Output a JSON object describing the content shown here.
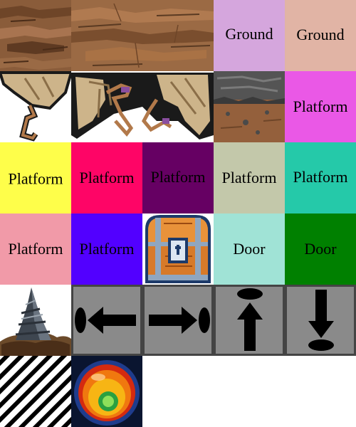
{
  "sheet": {
    "colors": {
      "ground_lilac": "#d5a6dd",
      "ground_peach": "#e1b4a5",
      "platform_magenta": "#ea58e6",
      "platform_yellow": "#fefe4a",
      "platform_pink": "#fe0566",
      "platform_plum": "#660063",
      "platform_sage": "#c3c8aa",
      "platform_teal": "#25c9a9",
      "platform_rose": "#f19aa8",
      "platform_violet": "#5200ff",
      "door_mint": "#a0e3d6",
      "door_green": "#008000",
      "arrow_tile_bg": "#8a8a8a"
    },
    "labels": {
      "r0c3": "Ground",
      "r0c4": "Ground",
      "r1c4": "Platform",
      "r2c0": "Platform",
      "r2c1": "Platform",
      "r2c2": "Platform",
      "r2c3": "Platform",
      "r2c4": "Platform",
      "r3c0": "Platform",
      "r3c1": "Platform",
      "r3c3": "Door",
      "r3c4": "Door"
    },
    "icons": {
      "rock_texture": "rock-texture-icon",
      "broken_pillar": "broken-pillar-icon",
      "stone_ledge": "stone-ledge-icon",
      "treasure_chest": "treasure-chest-icon",
      "arrow_left": "arrow-left-icon",
      "arrow_right": "arrow-right-icon",
      "arrow_up": "arrow-up-icon",
      "arrow_down": "arrow-down-icon",
      "spike_rock": "spike-rock-icon",
      "striped_pattern": "diagonal-stripes-icon",
      "orb": "glowing-orb-icon"
    }
  }
}
